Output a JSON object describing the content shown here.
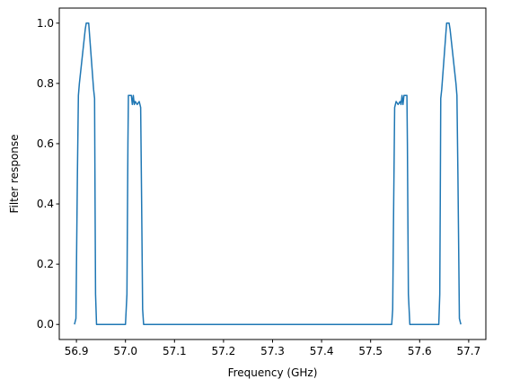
{
  "chart_data": {
    "type": "line",
    "x_label": "Frequency (GHz)",
    "y_label": "Filter response",
    "x": [
      56.896,
      56.899,
      56.902,
      56.904,
      56.906,
      56.918,
      56.92,
      56.925,
      56.935,
      56.937,
      56.938,
      56.939,
      56.941,
      57.0,
      57.003,
      57.005,
      57.006,
      57.012,
      57.014,
      57.016,
      57.018,
      57.02,
      57.024,
      57.028,
      57.031,
      57.033,
      57.035,
      57.037,
      57.543,
      57.545,
      57.547,
      57.549,
      57.552,
      57.556,
      57.56,
      57.562,
      57.564,
      57.566,
      57.568,
      57.574,
      57.575,
      57.577,
      57.58,
      57.639,
      57.641,
      57.642,
      57.643,
      57.645,
      57.655,
      57.66,
      57.662,
      57.674,
      57.676,
      57.678,
      57.681,
      57.684
    ],
    "series": [
      {
        "color": "#1f77b4",
        "values": [
          0,
          0.02,
          0.5,
          0.76,
          0.8,
          0.98,
          1.0,
          1.0,
          0.78,
          0.75,
          0.4,
          0.1,
          0,
          0,
          0.1,
          0.6,
          0.76,
          0.76,
          0.73,
          0.76,
          0.73,
          0.74,
          0.73,
          0.74,
          0.72,
          0.4,
          0.05,
          0,
          0,
          0.05,
          0.4,
          0.72,
          0.74,
          0.73,
          0.74,
          0.73,
          0.76,
          0.73,
          0.76,
          0.76,
          0.6,
          0.1,
          0,
          0,
          0.1,
          0.4,
          0.75,
          0.78,
          1.0,
          1.0,
          0.98,
          0.8,
          0.76,
          0.5,
          0.02,
          0
        ]
      }
    ],
    "xlim": [
      56.865,
      57.735
    ],
    "xticks": [
      56.9,
      {
        "value": 57,
        "label": "57.0"
      },
      57.1,
      57.2,
      57.3,
      57.4,
      57.5,
      57.6,
      57.7
    ],
    "ylim": [
      -0.05,
      1.05
    ],
    "yticks": [
      {
        "value": 0,
        "label": "0.0"
      },
      0.2,
      0.4,
      0.6,
      0.8,
      {
        "value": 1,
        "label": "1.0"
      }
    ]
  }
}
